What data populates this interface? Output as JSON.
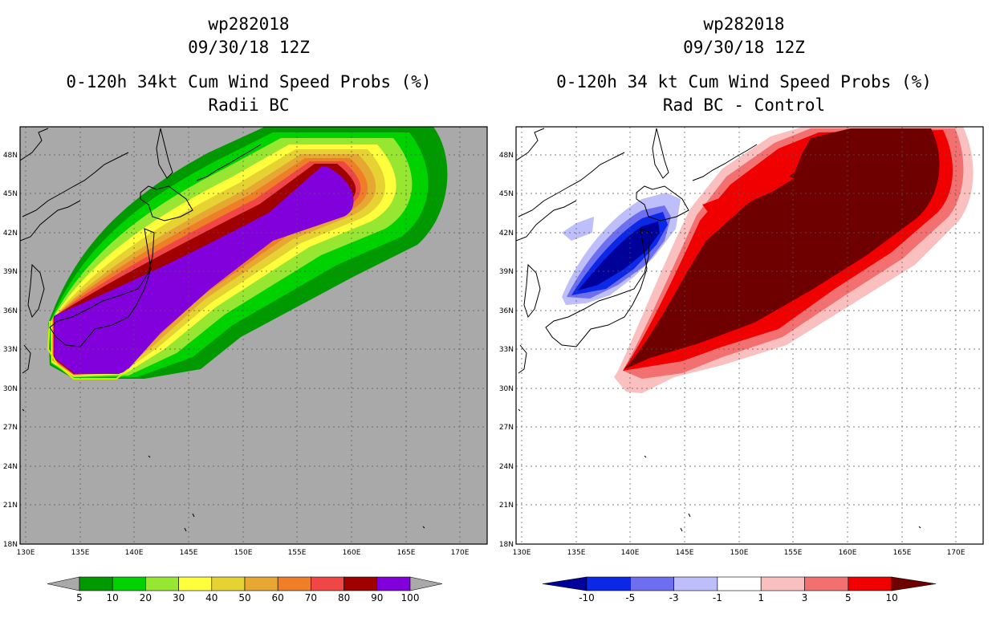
{
  "panels": [
    {
      "storm_id": "wp282018",
      "datetime": "09/30/18 12Z",
      "title": "0-120h 34kt Cum Wind Speed Probs (%)",
      "subtitle": "Radii BC",
      "colorbar_labels": [
        "5",
        "10",
        "20",
        "30",
        "40",
        "50",
        "60",
        "70",
        "80",
        "90",
        "100"
      ],
      "colorbar_colors": [
        "#009a00",
        "#00d200",
        "#96e632",
        "#fefe3c",
        "#e6d232",
        "#e6a832",
        "#ee7e28",
        "#f04646",
        "#a00000",
        "#8200dc"
      ],
      "background_color": "#a9a9a9"
    },
    {
      "storm_id": "wp282018",
      "datetime": "09/30/18 12Z",
      "title": "0-120h 34 kt Cum Wind Speed Probs (%)",
      "subtitle": "Rad BC - Control",
      "colorbar_labels": [
        "-10",
        "-5",
        "-3",
        "-1",
        "1",
        "3",
        "5",
        "10"
      ],
      "colorbar_colors": [
        "#00009a",
        "#0a28e6",
        "#6e6ef0",
        "#bebefa",
        "#ffffff",
        "#fac0c0",
        "#f27070",
        "#f00000",
        "#6e0000"
      ],
      "background_color": "#ffffff"
    }
  ],
  "axes": {
    "lat_labels": [
      "48N",
      "45N",
      "42N",
      "39N",
      "36N",
      "33N",
      "30N",
      "27N",
      "24N",
      "21N",
      "18N"
    ],
    "lon_labels": [
      "130E",
      "135E",
      "140E",
      "145E",
      "150E",
      "155E",
      "160E",
      "165E",
      "170E"
    ],
    "lat_range": [
      18,
      50
    ],
    "lon_range": [
      129.5,
      172.5
    ]
  }
}
